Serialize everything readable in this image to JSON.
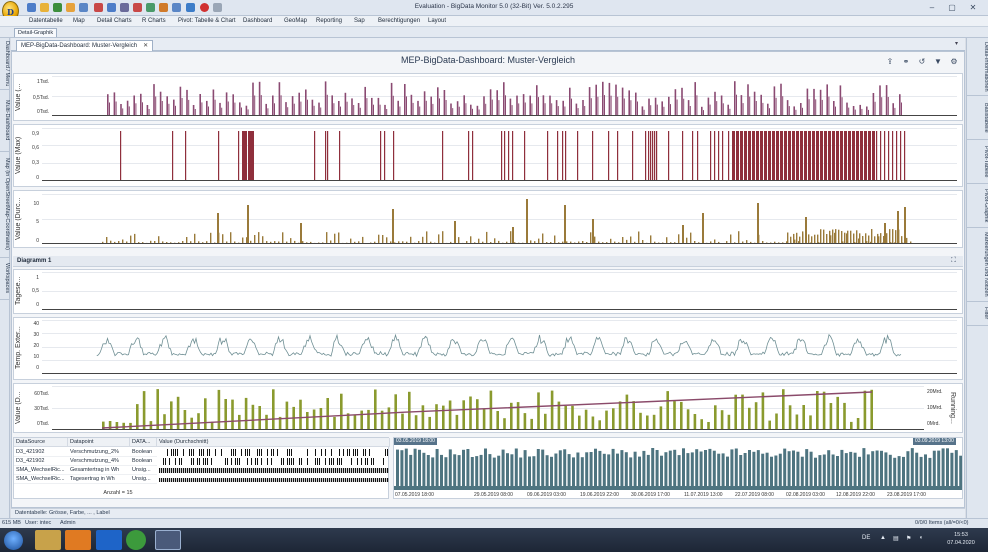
{
  "window": {
    "title": "Evaluation - BigData Monitor 5.0  (32-Bit)  Ver. 5.0.2.295",
    "logo_letter": "D"
  },
  "menu": [
    "Datentabelle",
    "Map",
    "Detail Charts",
    "R Charts",
    "Pivot: Tabelle & Chart",
    "Dashboard",
    "GeoMap",
    "Reporting",
    "Sap",
    "Berechtigungen",
    "Layout"
  ],
  "ribbon": {
    "active_tab": "Detail-Graphik"
  },
  "left_sidebar": [
    "Dashboard / Menu",
    "Multi-Dashboard",
    "Map (in OpenStreetMap-Coordinates)",
    "Workspaces"
  ],
  "right_sidebar": [
    "Detail-Informationen",
    "Basistabelle",
    "Pivot-Tabelle",
    "Pivot-Graphik",
    "Markierungen und Notizen",
    "Filter"
  ],
  "document_tab": {
    "label": "MEP-BigData-Dashboard:  Muster-Vergleich",
    "close": "✕",
    "menu": "▾"
  },
  "dashboard": {
    "title": "MEP-BigData-Dashboard:  Muster-Vergleich",
    "toolbar_icons": [
      "export-icon",
      "binoculars-icon",
      "undo-icon",
      "filter-icon",
      "settings-icon"
    ]
  },
  "panels": {
    "p1": {
      "ylabel": "Value (...",
      "ticks": [
        "1Tsd.",
        "0,5Tsd.",
        "0Tsd."
      ],
      "color": "#8a4a72"
    },
    "p2": {
      "ylabel": "Value (Max)",
      "ticks": [
        "0,9",
        "0,6",
        "0,3",
        "0"
      ],
      "color": "#8f2f3c"
    },
    "p3": {
      "ylabel": "Value (Durc...",
      "ticks": [
        "10",
        "5",
        "0"
      ],
      "color": "#9a7a3a"
    },
    "diagram_title": "Diagramm 1",
    "p4": {
      "ylabel": "Tagese...",
      "ticks": [
        "1",
        "0,5",
        "0"
      ]
    },
    "p5": {
      "ylabel": "Temp. Exter...",
      "ticks": [
        "40",
        "30",
        "20",
        "10",
        "0"
      ],
      "color": "#6f8f94"
    },
    "p6": {
      "ylabel": "Value (D...",
      "ylabel_right": "Running...",
      "ticks": [
        "60Tsd.",
        "30Tsd.",
        "0Tsd."
      ],
      "ticks_right": [
        "20Mrd.",
        "10Mrd.",
        "0Mrd."
      ],
      "bar_color": "#8a9a2e",
      "line_color": "#8a4a6a"
    }
  },
  "grid": {
    "headers": [
      "DataSource",
      "Datapoint",
      "DATA...",
      "Value (Durchschnitt)"
    ],
    "rows": [
      [
        "D3_421902",
        "Verschmutzung_2%",
        "Boolean"
      ],
      [
        "D3_421902",
        "Verschmutzung_4%",
        "Boolean"
      ],
      [
        "SMA_WechselRic...",
        "Gesamtertrag in Wh",
        "Unsig..."
      ],
      [
        "SMA_WechselRic...",
        "Tagesertrag in Wh",
        "Unsig..."
      ]
    ],
    "count": "Anzahl = 15"
  },
  "timeline": {
    "start_badge": "03.05.2019 18:00",
    "end_badge": "03.09.2019 13:00",
    "dates": [
      "07.05.2019 18:00",
      "29.05.2019 08:00",
      "09.06.2019 03:00",
      "19.06.2019 22:00",
      "30.06.2019 17:00",
      "11.07.2019 13:00",
      "22.07.2019 08:00",
      "02.08.2019 03:00",
      "12.08.2019 22:00",
      "23.08.2019 17:00"
    ],
    "color": "#4e7480"
  },
  "datatable_bar": "Datentabelle:  Grösse, Farbe, ... , Label",
  "status": {
    "memory": "615 MB",
    "user": "User:  intec",
    "role": "Admin",
    "items": "0/0/0 Items (all/=0/<0)"
  },
  "taskbar": {
    "lang": "DE",
    "time": "15:53",
    "date": "07.04.2020"
  }
}
